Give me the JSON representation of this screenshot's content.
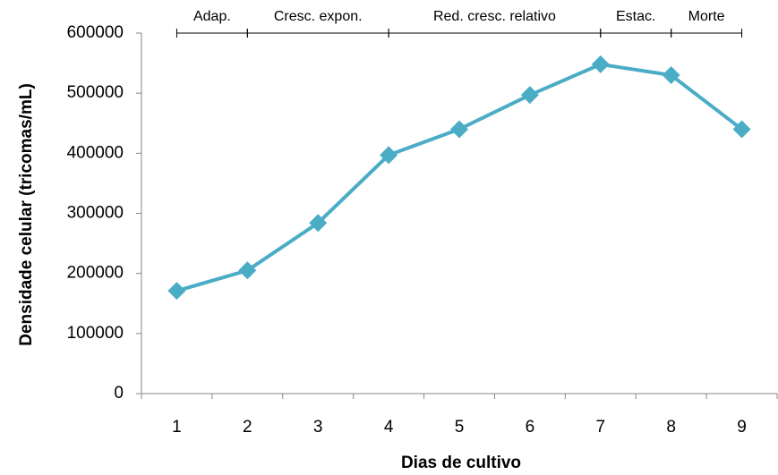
{
  "chart_data": {
    "type": "line",
    "x_label": "Dias de cultivo",
    "y_label": "Densidade celular (tricomas/mL)",
    "categories": [
      "1",
      "2",
      "3",
      "4",
      "5",
      "6",
      "7",
      "8",
      "9"
    ],
    "series": [
      {
        "name": "Densidade celular",
        "color": "#4bacc6",
        "values": [
          171000,
          205000,
          284000,
          397000,
          440000,
          497000,
          548000,
          530000,
          440000
        ]
      }
    ],
    "ylim": [
      0,
      600000
    ],
    "yticks": [
      0,
      100000,
      200000,
      300000,
      400000,
      500000,
      600000
    ],
    "phases": [
      {
        "label": "Adap.",
        "start": 1,
        "end": 2
      },
      {
        "label": "Cresc. expon.",
        "start": 2,
        "end": 4
      },
      {
        "label": "Red. cresc. relativo",
        "start": 4,
        "end": 7
      },
      {
        "label": "Estac.",
        "start": 7,
        "end": 8
      },
      {
        "label": "Morte",
        "start": 8,
        "end": 9
      }
    ]
  }
}
